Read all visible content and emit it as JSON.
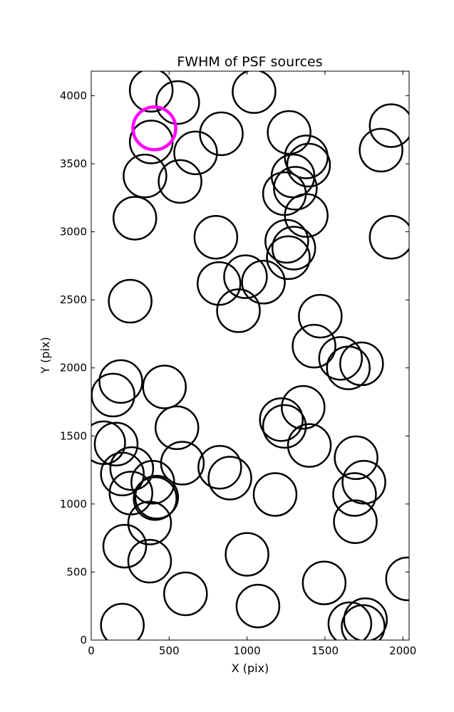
{
  "chart_data": {
    "type": "scatter",
    "title": "FWHM of PSF sources",
    "xlabel": "X (pix)",
    "ylabel": "Y (pix)",
    "xlim": [
      0,
      2040
    ],
    "ylim": [
      0,
      4180
    ],
    "xticks": [
      0,
      500,
      1000,
      1500,
      2000
    ],
    "yticks": [
      0,
      500,
      1000,
      1500,
      2000,
      2500,
      3000,
      3500,
      4000
    ],
    "xtick_labels": [
      "0",
      "500",
      "1000",
      "1500",
      "2000"
    ],
    "ytick_labels": [
      "0",
      "500",
      "1000",
      "1500",
      "2000",
      "2500",
      "3000",
      "3500",
      "4000"
    ],
    "grid": false,
    "marker": "open circle",
    "marker_color": "#000000",
    "highlight_color": "#ff00ff",
    "highlight": {
      "x": 405,
      "y": 3760
    },
    "points": [
      {
        "x": 385,
        "y": 4040
      },
      {
        "x": 555,
        "y": 3950
      },
      {
        "x": 1045,
        "y": 4030
      },
      {
        "x": 1925,
        "y": 3780
      },
      {
        "x": 385,
        "y": 3660
      },
      {
        "x": 835,
        "y": 3720
      },
      {
        "x": 1270,
        "y": 3730
      },
      {
        "x": 1860,
        "y": 3600
      },
      {
        "x": 670,
        "y": 3580
      },
      {
        "x": 1380,
        "y": 3550
      },
      {
        "x": 1395,
        "y": 3490
      },
      {
        "x": 345,
        "y": 3410
      },
      {
        "x": 570,
        "y": 3370
      },
      {
        "x": 1295,
        "y": 3410
      },
      {
        "x": 1310,
        "y": 3320
      },
      {
        "x": 1240,
        "y": 3280
      },
      {
        "x": 1380,
        "y": 3120
      },
      {
        "x": 280,
        "y": 3100
      },
      {
        "x": 800,
        "y": 2960
      },
      {
        "x": 1925,
        "y": 2960
      },
      {
        "x": 1255,
        "y": 2930
      },
      {
        "x": 1300,
        "y": 2880
      },
      {
        "x": 1265,
        "y": 2810
      },
      {
        "x": 990,
        "y": 2670
      },
      {
        "x": 1105,
        "y": 2630
      },
      {
        "x": 820,
        "y": 2620
      },
      {
        "x": 945,
        "y": 2420
      },
      {
        "x": 250,
        "y": 2490
      },
      {
        "x": 1470,
        "y": 2380
      },
      {
        "x": 1430,
        "y": 2160
      },
      {
        "x": 1600,
        "y": 2070
      },
      {
        "x": 1650,
        "y": 2000
      },
      {
        "x": 1735,
        "y": 2030
      },
      {
        "x": 190,
        "y": 1900
      },
      {
        "x": 140,
        "y": 1800
      },
      {
        "x": 470,
        "y": 1860
      },
      {
        "x": 1360,
        "y": 1710
      },
      {
        "x": 1220,
        "y": 1620
      },
      {
        "x": 1240,
        "y": 1570
      },
      {
        "x": 550,
        "y": 1560
      },
      {
        "x": 80,
        "y": 1450
      },
      {
        "x": 160,
        "y": 1440
      },
      {
        "x": 1400,
        "y": 1430
      },
      {
        "x": 1700,
        "y": 1340
      },
      {
        "x": 260,
        "y": 1260
      },
      {
        "x": 585,
        "y": 1300
      },
      {
        "x": 825,
        "y": 1270
      },
      {
        "x": 890,
        "y": 1190
      },
      {
        "x": 200,
        "y": 1220
      },
      {
        "x": 395,
        "y": 1160
      },
      {
        "x": 1750,
        "y": 1160
      },
      {
        "x": 1180,
        "y": 1070
      },
      {
        "x": 1690,
        "y": 1070
      },
      {
        "x": 255,
        "y": 1080
      },
      {
        "x": 420,
        "y": 1050
      },
      {
        "x": 410,
        "y": 1040
      },
      {
        "x": 375,
        "y": 860
      },
      {
        "x": 1695,
        "y": 870
      },
      {
        "x": 215,
        "y": 690
      },
      {
        "x": 1000,
        "y": 630
      },
      {
        "x": 375,
        "y": 580
      },
      {
        "x": 2030,
        "y": 450
      },
      {
        "x": 1495,
        "y": 420
      },
      {
        "x": 605,
        "y": 340
      },
      {
        "x": 1070,
        "y": 250
      },
      {
        "x": 200,
        "y": 110
      },
      {
        "x": 1760,
        "y": 150
      },
      {
        "x": 1660,
        "y": 120
      },
      {
        "x": 1745,
        "y": 100
      }
    ]
  }
}
